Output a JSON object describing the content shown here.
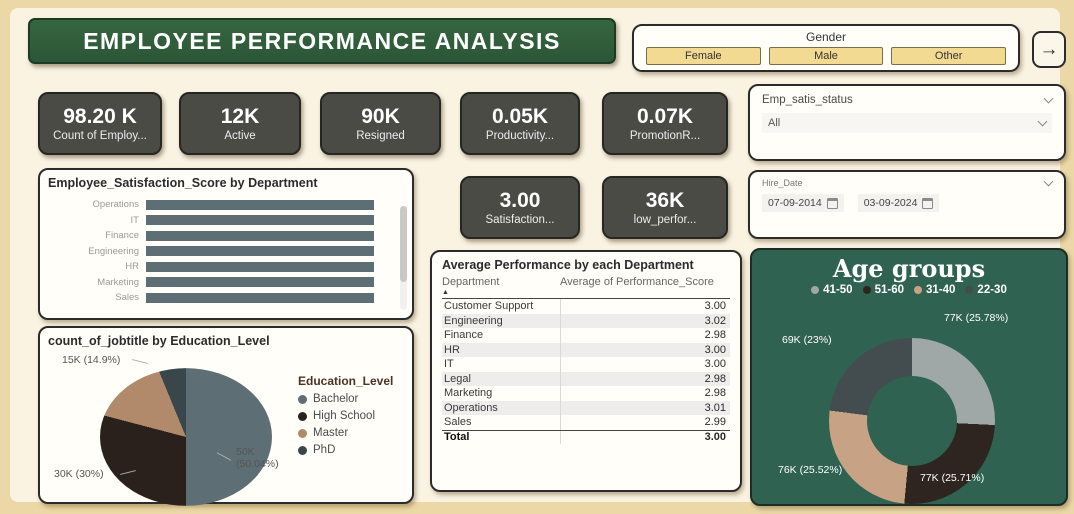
{
  "title": "EMPLOYEE PERFORMANCE ANALYSIS",
  "gender_filter": {
    "label": "Gender",
    "options": [
      "Female",
      "Male",
      "Other"
    ]
  },
  "nav": {
    "arrow": "→"
  },
  "kpis": [
    {
      "value": "98.20 K",
      "label": "Count of Employ..."
    },
    {
      "value": "12K",
      "label": "Active"
    },
    {
      "value": "90K",
      "label": "Resigned"
    },
    {
      "value": "0.05K",
      "label": "Productivity..."
    },
    {
      "value": "0.07K",
      "label": "PromotionR..."
    },
    {
      "value": "3.00",
      "label": "Satisfaction..."
    },
    {
      "value": "36K",
      "label": "low_perfor..."
    }
  ],
  "slicers": {
    "emp_satis": {
      "label": "Emp_satis_status",
      "value": "All"
    },
    "hire_date": {
      "label": "Hire_Date",
      "start": "07-09-2014",
      "end": "03-09-2024"
    }
  },
  "table_sort_icon": "▲",
  "chart_data": [
    {
      "type": "bar",
      "title": "Employee_Satisfaction_Score by Department",
      "orientation": "horizontal",
      "categories": [
        "Operations",
        "IT",
        "Finance",
        "Engineering",
        "HR",
        "Marketing",
        "Sales"
      ],
      "values": [
        3.0,
        3.0,
        3.0,
        3.0,
        3.0,
        3.0,
        3.0
      ],
      "xlim": [
        0,
        3.1
      ],
      "bar_color": "#5d6e75",
      "grid": false,
      "legend": false
    },
    {
      "type": "pie",
      "title": "count_of_jobtitle by Education_Level",
      "legend_title": "Education_Level",
      "legend_position": "right",
      "slices": [
        {
          "name": "Bachelor",
          "value": 50.04,
          "label": "50K (50.04%)",
          "color": "#5d6e75"
        },
        {
          "name": "High School",
          "value": 30.0,
          "label": "30K (30%)",
          "color": "#2a211d"
        },
        {
          "name": "Master",
          "value": 14.9,
          "label": "15K (14.9%)",
          "color": "#b18a6b"
        },
        {
          "name": "PhD",
          "value": 5.06,
          "label": "",
          "color": "#39464c"
        }
      ]
    },
    {
      "type": "table",
      "title": "Average Performance by each Department",
      "columns": [
        "Department",
        "Average of Performance_Score"
      ],
      "rows": [
        [
          "Customer Support",
          "3.00"
        ],
        [
          "Engineering",
          "3.02"
        ],
        [
          "Finance",
          "2.98"
        ],
        [
          "HR",
          "3.00"
        ],
        [
          "IT",
          "3.00"
        ],
        [
          "Legal",
          "2.98"
        ],
        [
          "Marketing",
          "2.98"
        ],
        [
          "Operations",
          "3.01"
        ],
        [
          "Sales",
          "2.99"
        ]
      ],
      "total": [
        "Total",
        "3.00"
      ]
    },
    {
      "type": "donut",
      "title": "Age groups",
      "legend_position": "top",
      "slices": [
        {
          "name": "41-50",
          "value": 25.78,
          "label": "77K (25.78%)",
          "color": "#9fa8a7"
        },
        {
          "name": "51-60",
          "value": 25.71,
          "label": "77K (25.71%)",
          "color": "#2e2520"
        },
        {
          "name": "31-40",
          "value": 25.52,
          "label": "76K (25.52%)",
          "color": "#c8a285"
        },
        {
          "name": "22-30",
          "value": 23.0,
          "label": "69K (23%)",
          "color": "#434c4e"
        }
      ]
    }
  ],
  "colors": {
    "banner_green": "#2f5e3b",
    "age_panel_green": "#2f6251",
    "kpi_gray": "#4b4b45",
    "accent_tan": "#f3da92",
    "slate": "#5d6e75"
  }
}
